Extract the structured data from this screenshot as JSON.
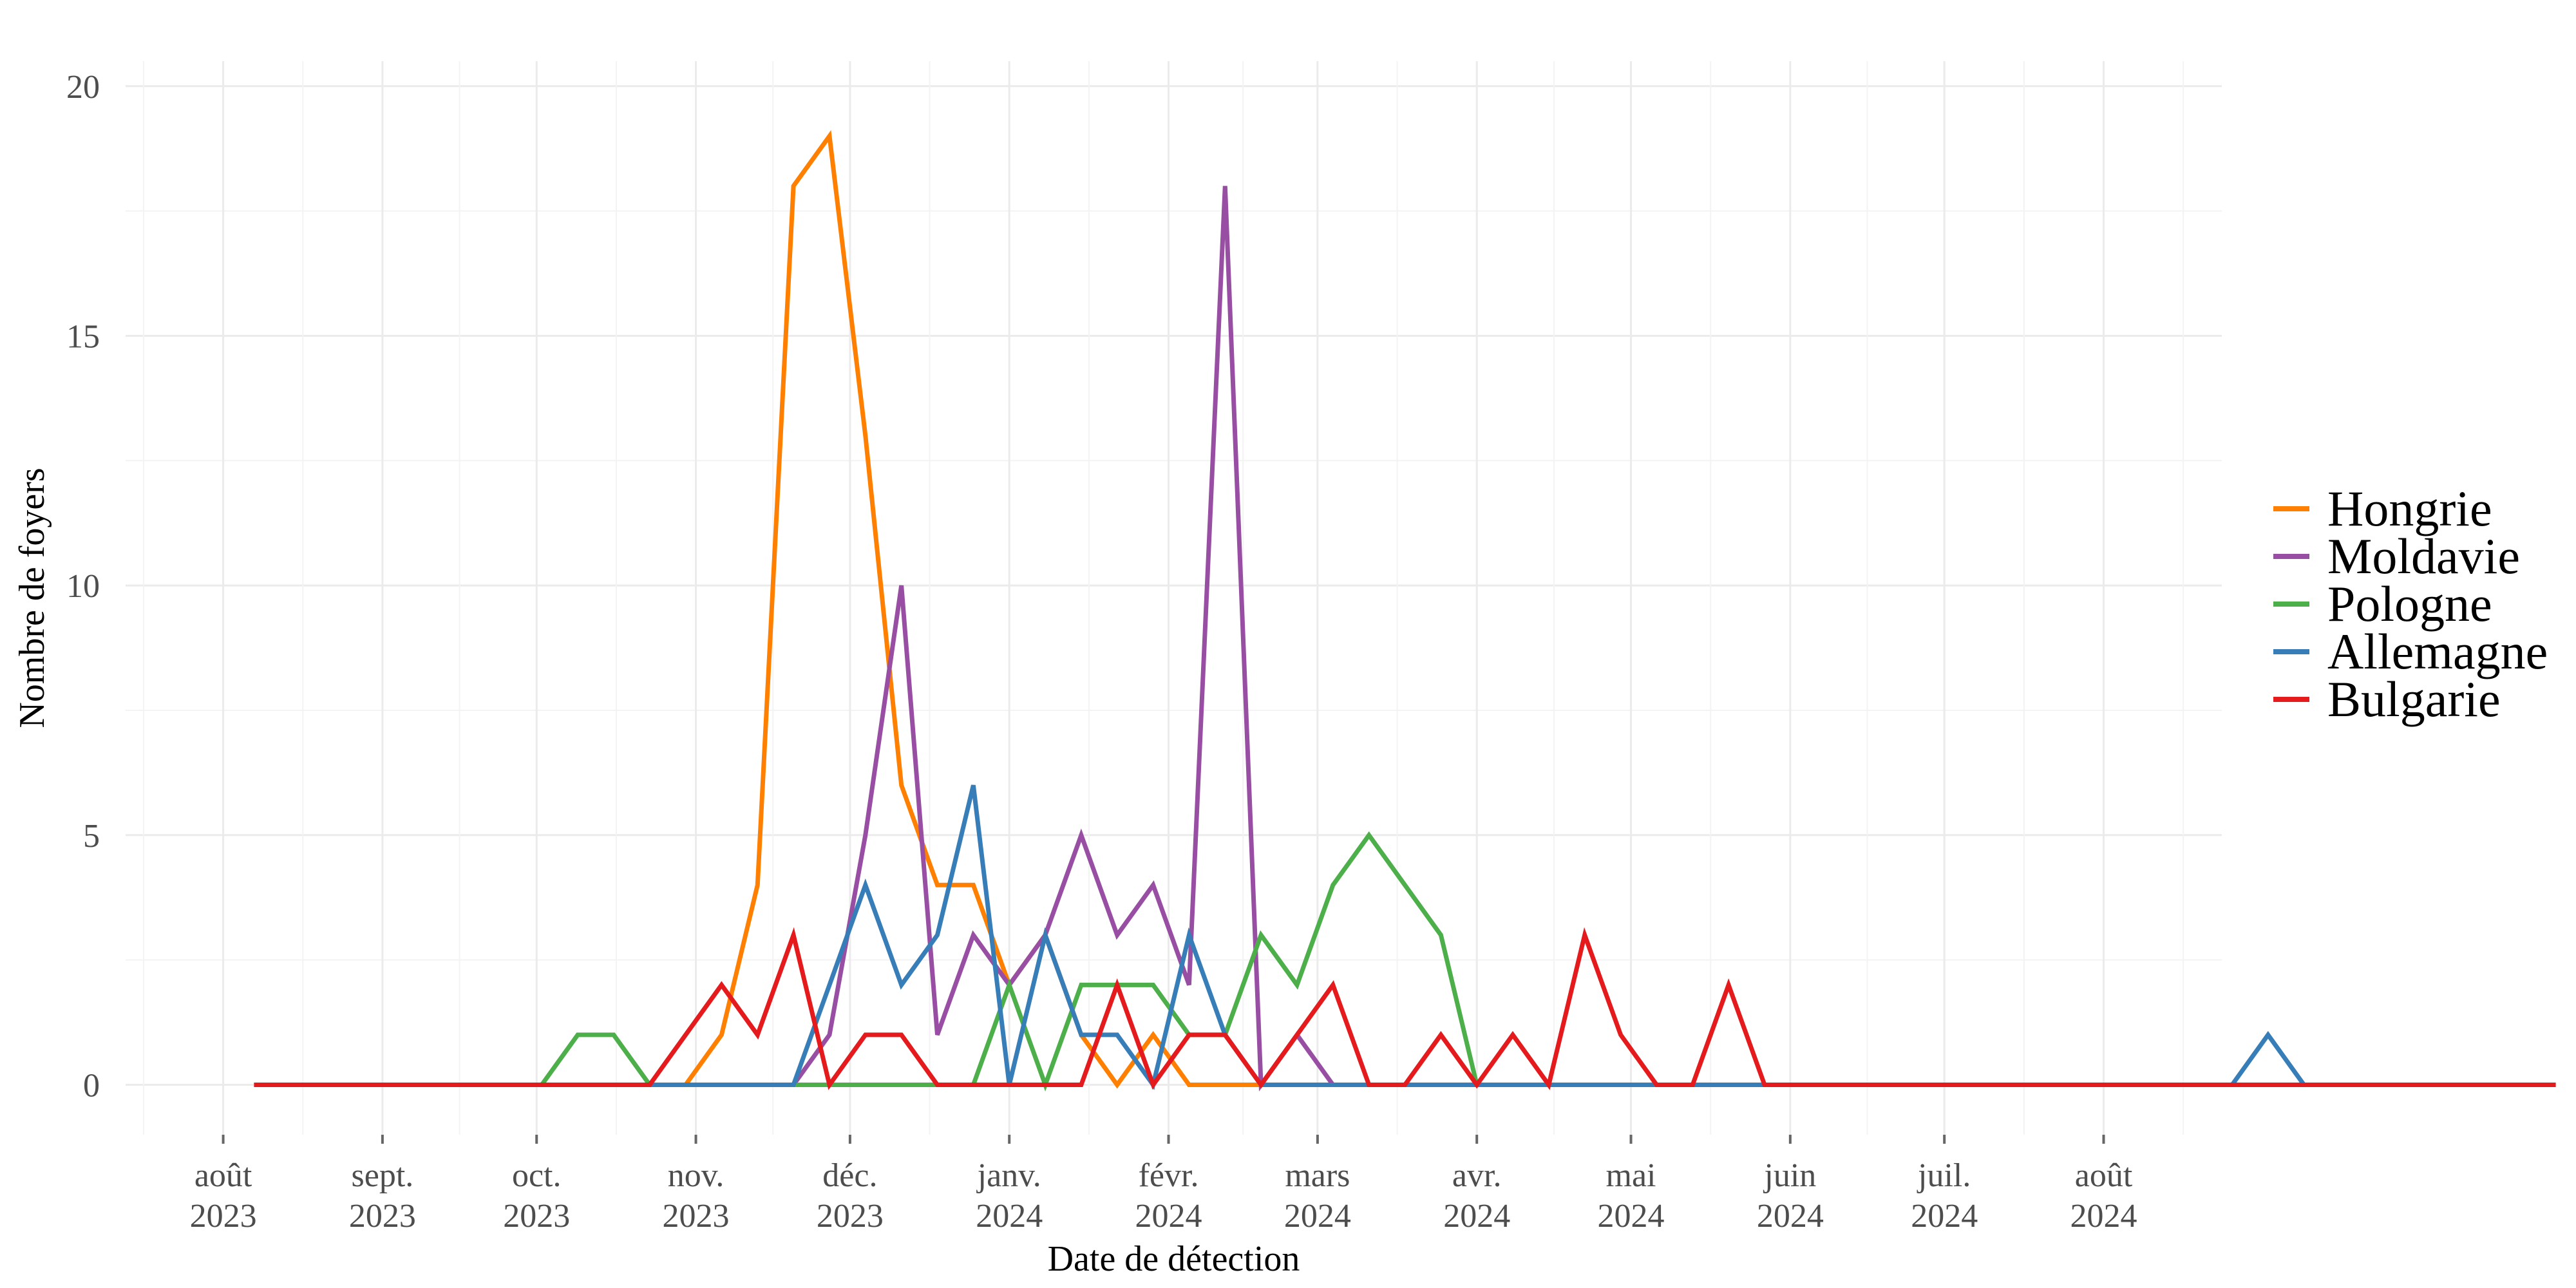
{
  "chart_data": {
    "type": "line",
    "xlabel": "Date de détection",
    "ylabel": "Nombre de foyers",
    "x_start": "2023-08-07",
    "x_step_days": 7,
    "xlim": [
      "2023-07-13",
      "2024-08-24"
    ],
    "ylim": [
      -1.0,
      20.5
    ],
    "y_ticks": [
      0,
      5,
      10,
      15,
      20
    ],
    "x_ticks": [
      {
        "date": "2023-08-01",
        "label1": "août",
        "label2": "2023"
      },
      {
        "date": "2023-09-01",
        "label1": "sept.",
        "label2": "2023"
      },
      {
        "date": "2023-10-01",
        "label1": "oct.",
        "label2": "2023"
      },
      {
        "date": "2023-11-01",
        "label1": "nov.",
        "label2": "2023"
      },
      {
        "date": "2023-12-01",
        "label1": "déc.",
        "label2": "2023"
      },
      {
        "date": "2024-01-01",
        "label1": "janv.",
        "label2": "2024"
      },
      {
        "date": "2024-02-01",
        "label1": "févr.",
        "label2": "2024"
      },
      {
        "date": "2024-03-01",
        "label1": "mars",
        "label2": "2024"
      },
      {
        "date": "2024-04-01",
        "label1": "avr.",
        "label2": "2024"
      },
      {
        "date": "2024-05-01",
        "label1": "mai",
        "label2": "2024"
      },
      {
        "date": "2024-06-01",
        "label1": "juin",
        "label2": "2024"
      },
      {
        "date": "2024-07-01",
        "label1": "juil.",
        "label2": "2024"
      },
      {
        "date": "2024-08-01",
        "label1": "août",
        "label2": "2024"
      }
    ],
    "grid": true,
    "legend_position": "right",
    "series": [
      {
        "name": "Hongrie",
        "color": "#FF7F00",
        "start_index": 12,
        "values": [
          0,
          1,
          4,
          18,
          19,
          13,
          6,
          4,
          4,
          2,
          3,
          1,
          0,
          1,
          0,
          0,
          0
        ]
      },
      {
        "name": "Moldavie",
        "color": "#984EA3",
        "start_index": 15,
        "values": [
          0,
          1,
          5,
          10,
          1,
          3,
          2,
          3,
          5,
          3,
          4,
          2,
          18,
          0,
          1,
          0
        ]
      },
      {
        "name": "Pologne",
        "color": "#4DAF4A",
        "start_index": 8,
        "values": [
          0,
          1,
          1,
          0,
          0,
          0,
          0,
          0,
          0,
          0,
          0,
          0,
          0,
          2,
          0,
          2,
          2,
          2,
          1,
          1,
          3,
          2,
          4,
          5,
          4,
          3,
          0
        ]
      },
      {
        "name": "Allemagne",
        "color": "#377EB8",
        "start_index": 10,
        "values": [
          0,
          0,
          0,
          0,
          0,
          0,
          2,
          4,
          2,
          3,
          6,
          0,
          3,
          1,
          1,
          0,
          3,
          1,
          0,
          0,
          0,
          0,
          0,
          0,
          0,
          0,
          0,
          0,
          0,
          0,
          0,
          0,
          0,
          0,
          0,
          0,
          0,
          0,
          0,
          0,
          0,
          0,
          0,
          0,
          0,
          0,
          1,
          0,
          0,
          0,
          0,
          0,
          0
        ]
      },
      {
        "name": "Bulgarie",
        "color": "#E41A1C",
        "start_index": 0,
        "values": [
          0,
          0,
          0,
          0,
          0,
          0,
          0,
          0,
          0,
          0,
          0,
          0,
          1,
          2,
          1,
          3,
          0,
          1,
          1,
          0,
          0,
          0,
          0,
          0,
          2,
          0,
          1,
          1,
          0,
          1,
          2,
          0,
          0,
          1,
          0,
          1,
          0,
          3,
          1,
          0,
          0,
          2,
          0,
          0,
          0,
          0,
          0,
          0,
          0,
          0,
          0,
          0,
          0,
          0,
          0,
          0,
          0,
          0,
          0,
          0,
          0,
          0,
          0,
          0,
          0
        ]
      }
    ]
  }
}
